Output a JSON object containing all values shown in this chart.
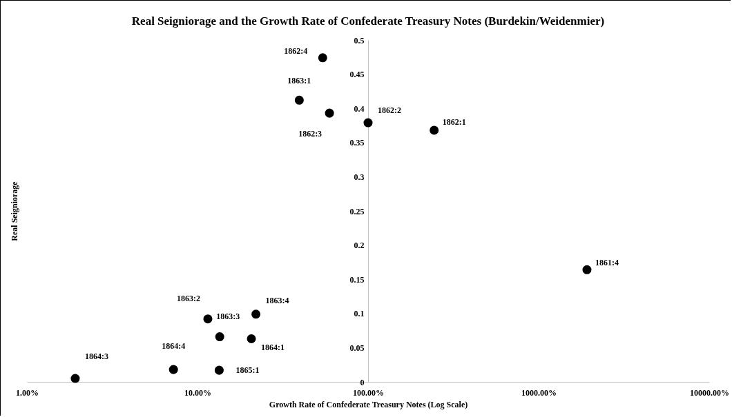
{
  "chart_data": {
    "type": "scatter",
    "title": "Real Seigniorage and the Growth Rate of Confederate Treasury Notes (Burdekin/Weidenmier)",
    "xlabel": "Growth Rate of Confederate Treasury Notes (Log Scale)",
    "ylabel": "Real Seigniorage",
    "log": "x",
    "grid": false,
    "marker": "circle",
    "x": [
      1920,
      244,
      100,
      59.4,
      54.2,
      39.5,
      11.5,
      13.5,
      22.0,
      20.7,
      1.92,
      7.23,
      13.4
    ],
    "series": [
      {
        "color": "#000000",
        "values": [
          0.164,
          0.368,
          0.379,
          0.393,
          0.474,
          0.412,
          0.092,
          0.066,
          0.099,
          0.063,
          0.005,
          0.018,
          0.017
        ]
      }
    ],
    "xlim": [
      1,
      10000
    ],
    "xticks": [
      {
        "value": 1,
        "label": "1.00%"
      },
      {
        "value": 10,
        "label": "10.00%"
      },
      {
        "value": 100,
        "label": "100.00%"
      },
      {
        "value": 1000,
        "label": "1000.00%"
      },
      {
        "value": 10000,
        "label": "10000.00%"
      }
    ],
    "ylim": [
      0,
      0.5
    ],
    "yticks": [
      0,
      0.05,
      0.1,
      0.15,
      0.2,
      0.25,
      0.3,
      0.35,
      0.4,
      0.45,
      0.5
    ],
    "annotations": [
      {
        "text": "1861:4",
        "x": 1920,
        "y": 0.164
      },
      {
        "text": "1862:1",
        "x": 244,
        "y": 0.368
      },
      {
        "text": "1862:2",
        "x": 100,
        "y": 0.379
      },
      {
        "text": "1862:3",
        "x": 59.4,
        "y": 0.393
      },
      {
        "text": "1862:4",
        "x": 54.2,
        "y": 0.474
      },
      {
        "text": "1863:1",
        "x": 39.5,
        "y": 0.412
      },
      {
        "text": "1863:2",
        "x": 11.5,
        "y": 0.092
      },
      {
        "text": "1863:3",
        "x": 13.5,
        "y": 0.066
      },
      {
        "text": "1863:4",
        "x": 22.0,
        "y": 0.099
      },
      {
        "text": "1864:1",
        "x": 20.7,
        "y": 0.063
      },
      {
        "text": "1864:3",
        "x": 1.92,
        "y": 0.005
      },
      {
        "text": "1864:4",
        "x": 7.23,
        "y": 0.018
      },
      {
        "text": "1865:1",
        "x": 13.4,
        "y": 0.017
      }
    ]
  }
}
